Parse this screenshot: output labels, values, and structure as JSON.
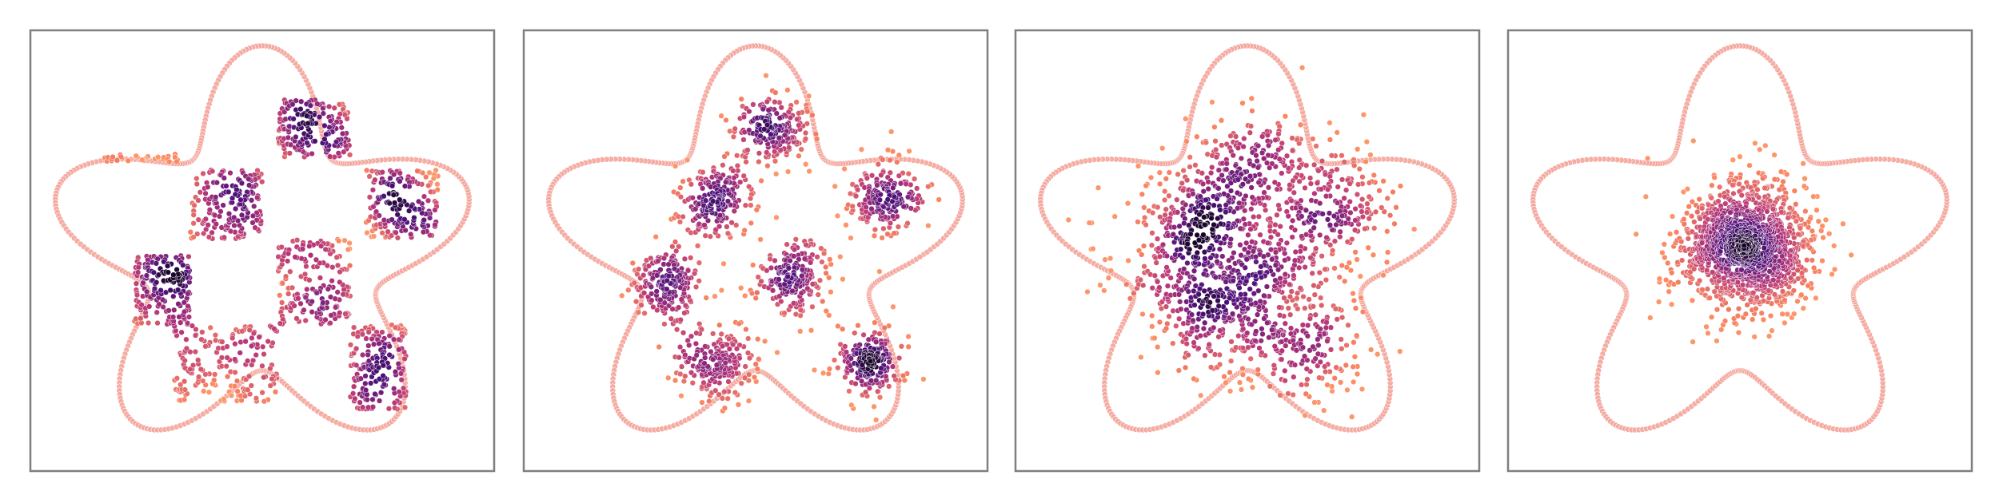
{
  "chart_data": [
    {
      "type": "scatter",
      "panel": 1,
      "title": "",
      "xlabel": "",
      "ylabel": "",
      "xlim": [
        -1.45,
        1.45
      ],
      "ylim": [
        -1.4,
        1.45
      ],
      "grid": false,
      "boundary": {
        "shape": "star",
        "lobes": 5,
        "base_radius": 1.05,
        "amplitude": 0.3
      },
      "series": [
        {
          "distribution": "checkerboard",
          "cells": [
            [
              0.1,
              0.55,
              0.63,
              1.0
            ],
            [
              -0.45,
              0.0,
              0.1,
              0.55
            ],
            [
              0.65,
              1.1,
              0.1,
              0.55
            ],
            [
              0.1,
              0.55,
              -0.45,
              0.1
            ],
            [
              -0.8,
              -0.45,
              -0.45,
              0.0
            ],
            [
              -0.55,
              0.1,
              -0.95,
              -0.45
            ],
            [
              0.55,
              0.9,
              -1.0,
              -0.45
            ],
            [
              -1.0,
              -0.5,
              0.6,
              0.65
            ]
          ],
          "n_points": 1400
        }
      ],
      "colormap": [
        "#fcfdbf",
        "#fc8961",
        "#b73779",
        "#51127c",
        "#000004"
      ]
    },
    {
      "type": "scatter",
      "panel": 2,
      "title": "",
      "xlabel": "",
      "ylabel": "",
      "xlim": [
        -1.45,
        1.45
      ],
      "ylim": [
        -1.4,
        1.45
      ],
      "grid": false,
      "boundary": {
        "shape": "star",
        "lobes": 5,
        "base_radius": 1.05,
        "amplitude": 0.3
      },
      "series": [
        {
          "distribution": "blurred-checkerboard",
          "centers": [
            [
              0.1,
              0.8
            ],
            [
              -0.25,
              0.35
            ],
            [
              0.8,
              0.35
            ],
            [
              0.25,
              -0.15
            ],
            [
              -0.55,
              -0.2
            ],
            [
              -0.25,
              -0.7
            ],
            [
              0.7,
              -0.72
            ]
          ],
          "spread": 0.12,
          "n_points": 1400
        }
      ],
      "colormap": [
        "#fcfdbf",
        "#fc8961",
        "#b73779",
        "#51127c",
        "#000004"
      ]
    },
    {
      "type": "scatter",
      "panel": 3,
      "title": "",
      "xlabel": "",
      "ylabel": "",
      "xlim": [
        -1.45,
        1.45
      ],
      "ylim": [
        -1.4,
        1.45
      ],
      "grid": false,
      "boundary": {
        "shape": "star",
        "lobes": 5,
        "base_radius": 1.05,
        "amplitude": 0.3
      },
      "series": [
        {
          "distribution": "diffused-clusters",
          "centers": [
            [
              0.05,
              0.55
            ],
            [
              -0.3,
              0.25
            ],
            [
              0.55,
              0.3
            ],
            [
              0.1,
              -0.05
            ],
            [
              -0.4,
              -0.1
            ],
            [
              -0.15,
              -0.45
            ],
            [
              0.35,
              -0.55
            ]
          ],
          "spread": 0.2,
          "n_points": 1400
        }
      ],
      "colormap": [
        "#fcfdbf",
        "#fc8961",
        "#b73779",
        "#51127c",
        "#000004"
      ]
    },
    {
      "type": "scatter",
      "panel": 4,
      "title": "",
      "xlabel": "",
      "ylabel": "",
      "xlim": [
        -1.45,
        1.45
      ],
      "ylim": [
        -1.4,
        1.45
      ],
      "grid": false,
      "boundary": {
        "shape": "star",
        "lobes": 5,
        "base_radius": 1.05,
        "amplitude": 0.3
      },
      "series": [
        {
          "distribution": "gaussian",
          "mean": [
            0.05,
            0.05
          ],
          "std": 0.2,
          "n_points": 1400
        }
      ],
      "colormap": [
        "#fcfdbf",
        "#fc8961",
        "#b73779",
        "#51127c",
        "#000004"
      ]
    }
  ]
}
